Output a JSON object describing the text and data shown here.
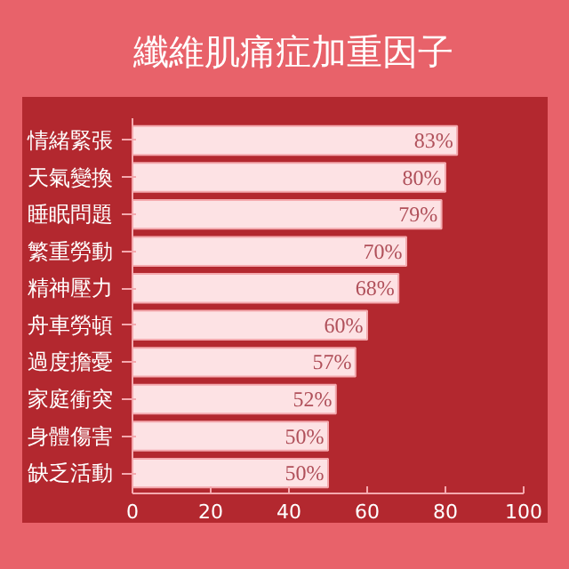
{
  "chart_data": {
    "type": "bar",
    "orientation": "horizontal",
    "title": "纖維肌痛症加重因子",
    "categories": [
      "情緒緊張",
      "天氣變換",
      "睡眠問題",
      "繁重勞動",
      "精神壓力",
      "舟車勞頓",
      "過度擔憂",
      "家庭衝突",
      "身體傷害",
      "缺乏活動"
    ],
    "values": [
      83,
      80,
      79,
      70,
      68,
      60,
      57,
      52,
      50,
      50
    ],
    "value_labels": [
      "83%",
      "80%",
      "79%",
      "70%",
      "68%",
      "60%",
      "57%",
      "52%",
      "50%",
      "50%"
    ],
    "color": "#fde2e4",
    "xlim": [
      0,
      100
    ],
    "xticks": [
      0,
      20,
      40,
      60,
      80,
      100
    ],
    "grid": false
  }
}
